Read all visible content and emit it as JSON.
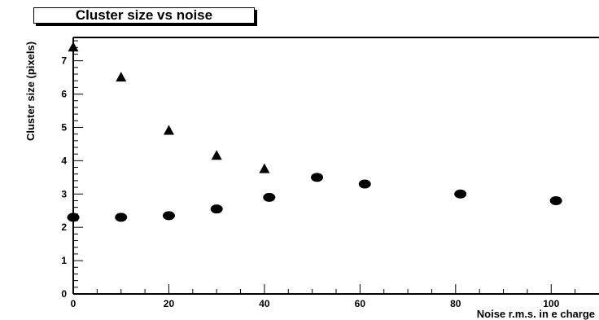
{
  "chart_data": {
    "type": "scatter",
    "title": "Cluster size vs noise",
    "xlabel": "Noise r.m.s. in e charge",
    "ylabel": "Cluster size (pixels)",
    "xlim": [
      0,
      110
    ],
    "ylim": [
      0,
      7.7
    ],
    "x_ticks": [
      0,
      20,
      40,
      60,
      80,
      100
    ],
    "y_ticks": [
      0,
      1,
      2,
      3,
      4,
      5,
      6,
      7
    ],
    "grid": false,
    "legend": "none",
    "series": [
      {
        "marker": "triangle",
        "points": [
          [
            0,
            7.4
          ],
          [
            10,
            6.5
          ],
          [
            20,
            4.9
          ],
          [
            30,
            4.15
          ],
          [
            40,
            3.75
          ]
        ]
      },
      {
        "marker": "circle",
        "points": [
          [
            0,
            2.3
          ],
          [
            10,
            2.3
          ],
          [
            20,
            2.35
          ],
          [
            30,
            2.55
          ],
          [
            41,
            2.9
          ],
          [
            51,
            3.5
          ],
          [
            61,
            3.3
          ],
          [
            81,
            3.0
          ],
          [
            101,
            2.8
          ]
        ]
      }
    ]
  }
}
